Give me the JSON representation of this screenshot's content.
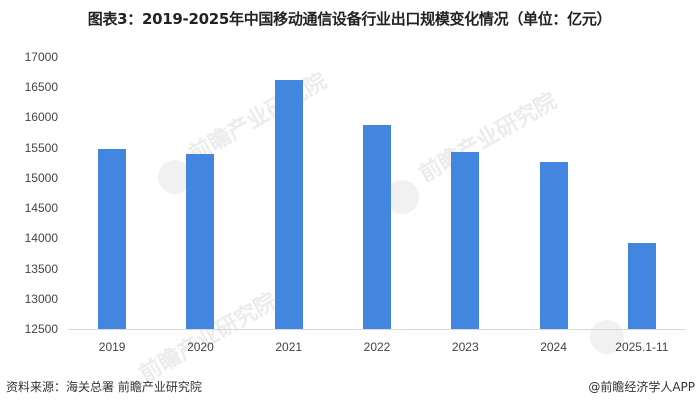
{
  "title": "图表3：2019-2025年中国移动通信设备行业出口规模变化情况（单位：亿元）",
  "footer": {
    "source": "资料来源：海关总署 前瞻产业研究院",
    "credit": "@前瞻经济学人APP"
  },
  "watermark": "前瞻产业研究院",
  "colors": {
    "bar": "#4286e0",
    "axis": "#d9d9d9",
    "text": "#444444"
  },
  "chart_data": {
    "type": "bar",
    "title": "图表3：2019-2025年中国移动通信设备行业出口规模变化情况（单位：亿元）",
    "xlabel": "",
    "ylabel": "亿元",
    "categories": [
      "2019",
      "2020",
      "2021",
      "2022",
      "2023",
      "2024",
      "2025.1-11"
    ],
    "values": [
      15480,
      15400,
      16620,
      15880,
      15430,
      15270,
      13930
    ],
    "ylim": [
      12500,
      17000
    ],
    "yticks": [
      "17000",
      "16500",
      "16000",
      "15500",
      "15000",
      "14500",
      "14000",
      "13500",
      "13000",
      "12500"
    ],
    "grid": false,
    "legend": null
  }
}
